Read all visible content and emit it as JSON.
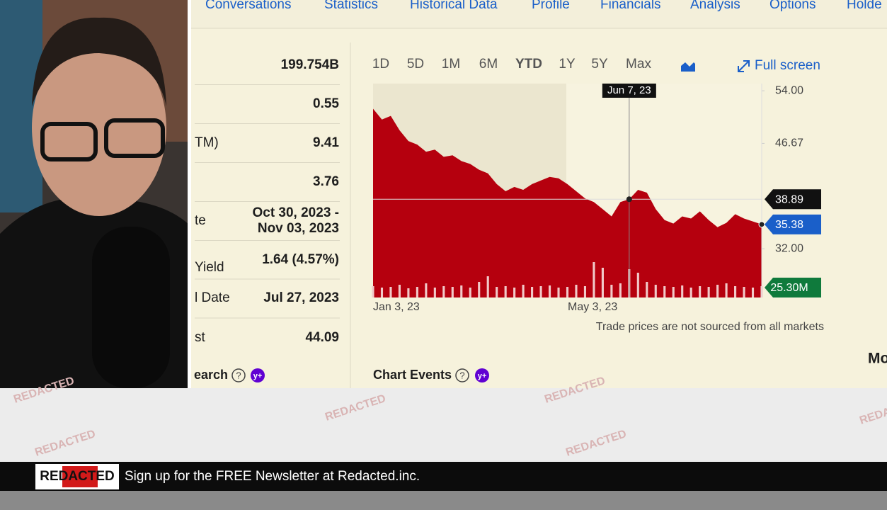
{
  "nav_tabs": [
    "Conversations",
    "Statistics",
    "Historical Data",
    "Profile",
    "Financials",
    "Analysis",
    "Options",
    "Holde"
  ],
  "stats": [
    {
      "value": "199.754B"
    },
    {
      "value": 0.55
    },
    {
      "label": "TM)",
      "value": 9.41
    },
    {
      "value": 3.76
    },
    {
      "label": "te",
      "value": [
        "Oct 30, 2023 -",
        "Nov 03, 2023"
      ]
    },
    {
      "label": "Yield",
      "value": "1.64 (4.57%)"
    },
    {
      "label": "l Date",
      "value": "Jul 27, 2023"
    },
    {
      "label": "st",
      "value": 44.09
    }
  ],
  "research_label": "earch",
  "help_icon": "?",
  "plus_badge": "y+",
  "range_buttons": [
    "1D",
    "5D",
    "1M",
    "6M",
    "YTD",
    "1Y",
    "5Y",
    "Max"
  ],
  "active_range": "YTD",
  "full_screen": "Full screen",
  "chart": {
    "hover_date": "Jun 7, 23",
    "hover_price": 38.89,
    "last_price": 35.38,
    "last_volume": "25.30M",
    "x_labels": [
      "Jan 3, 23",
      "May 3, 23"
    ],
    "ylim": [
      25.2,
      55
    ],
    "yticks": [
      {
        "value": 54,
        "label": "54.00"
      },
      {
        "value": 46.67,
        "label": "46.67"
      },
      {
        "value": 32,
        "label": "32.00"
      }
    ],
    "color": "#b5000e",
    "prices": [
      51.5,
      50.0,
      50.5,
      48.5,
      47.0,
      46.5,
      45.5,
      45.8,
      44.8,
      45.0,
      44.2,
      43.8,
      43.0,
      42.5,
      41.0,
      40.0,
      40.6,
      40.2,
      41.0,
      41.5,
      42.0,
      41.8,
      41.0,
      40.0,
      39.0,
      38.5,
      37.5,
      36.5,
      38.5,
      38.89,
      40.2,
      39.8,
      37.5,
      36.0,
      35.5,
      36.5,
      36.2,
      37.2,
      36.0,
      35.0,
      35.6,
      36.8,
      36.2,
      35.8,
      35.38
    ],
    "volumes": [
      16,
      14,
      15,
      18,
      13,
      15,
      20,
      14,
      16,
      15,
      17,
      14,
      22,
      30,
      15,
      16,
      14,
      18,
      15,
      16,
      17,
      14,
      15,
      18,
      16,
      50,
      42,
      18,
      20,
      40,
      35,
      22,
      18,
      16,
      15,
      17,
      14,
      16,
      15,
      18,
      20,
      16,
      15,
      14,
      16
    ]
  },
  "footnote": "Trade prices are not sourced from all markets",
  "chart_events": "Chart Events",
  "cut_heading": "Mo",
  "watermark": "REDACTED",
  "banner": {
    "logo": "REDACTED",
    "text": "Sign up for the FREE Newsletter at Redacted.inc."
  }
}
